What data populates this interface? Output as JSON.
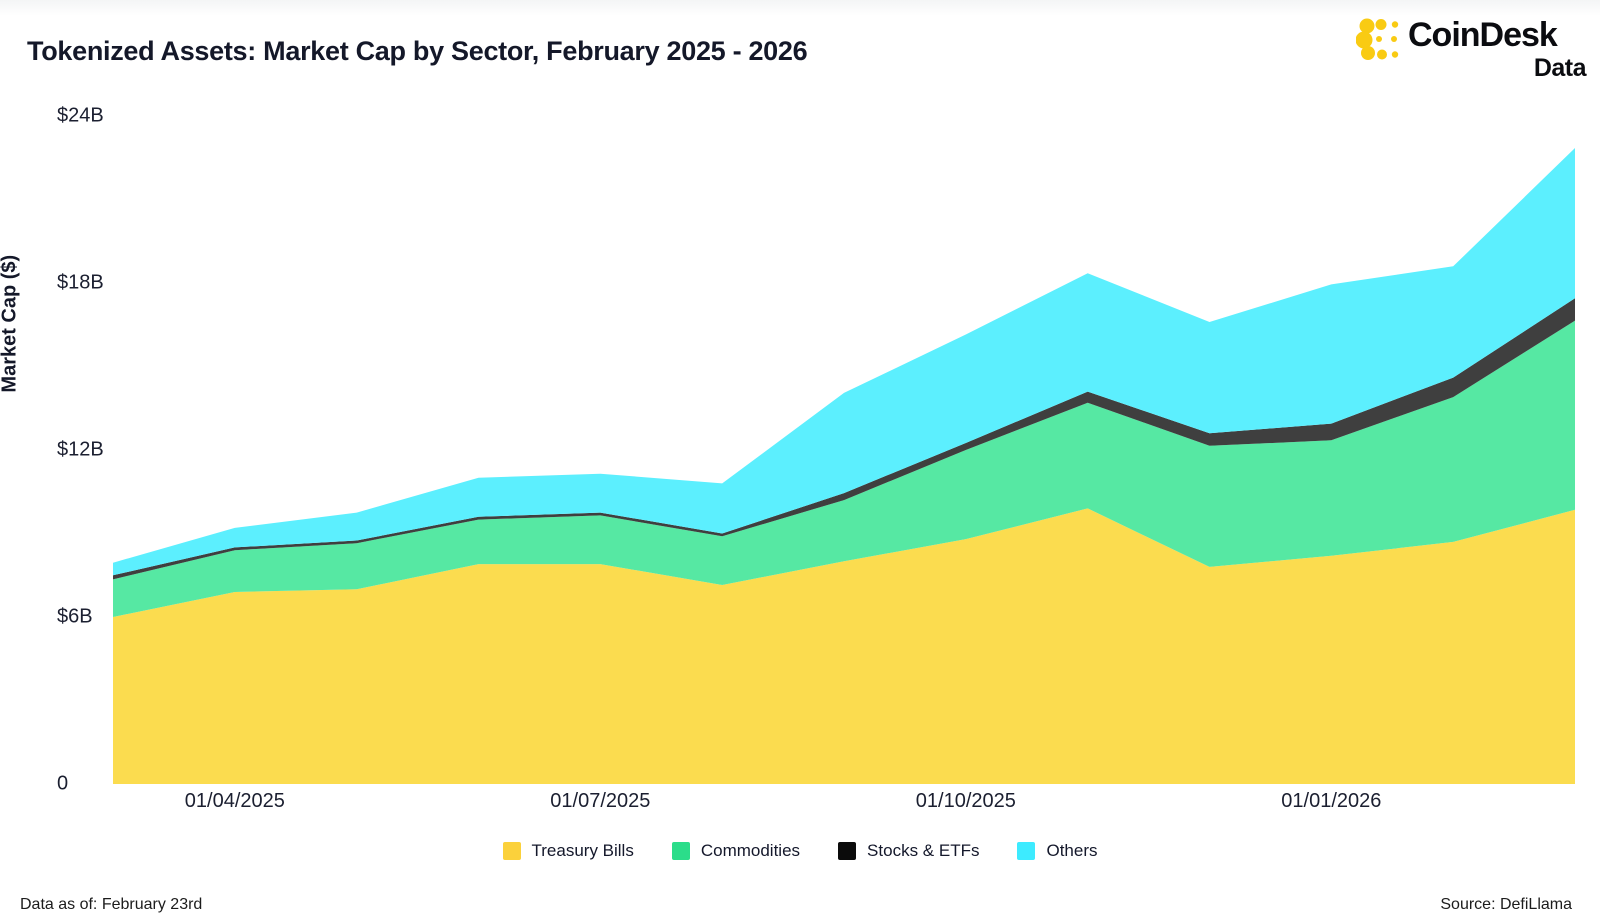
{
  "header": {
    "title": "Tokenized Assets: Market Cap by Sector, February 2025 - 2026",
    "logo": {
      "brand": "CoinDesk",
      "product": "Data",
      "mark_color": "#F9CB13"
    }
  },
  "footer": {
    "left": "Data as of: February 23rd",
    "right": "Source: DefiLlama"
  },
  "chart_data": {
    "type": "area",
    "stacked": true,
    "title": "Tokenized Assets: Market Cap by Sector, February 2025 - 2026",
    "xlabel": "",
    "ylabel": "Market Cap ($)",
    "ylim": [
      0,
      24
    ],
    "grid": false,
    "legend_position": "bottom",
    "x": [
      "01/03/2025",
      "01/04/2025",
      "01/05/2025",
      "01/06/2025",
      "01/07/2025",
      "01/08/2025",
      "01/09/2025",
      "01/10/2025",
      "01/11/2025",
      "01/12/2025",
      "01/01/2026",
      "01/02/2026",
      "01/03/2026"
    ],
    "yticks": [
      {
        "value": 0,
        "label": "0"
      },
      {
        "value": 6,
        "label": "$6B"
      },
      {
        "value": 12,
        "label": "$12B"
      },
      {
        "value": 18,
        "label": "$18B"
      },
      {
        "value": 24,
        "label": "$24B"
      }
    ],
    "xticks": [
      {
        "index": 1,
        "label": "01/04/2025"
      },
      {
        "index": 4,
        "label": "01/07/2025"
      },
      {
        "index": 7,
        "label": "01/10/2025"
      },
      {
        "index": 10,
        "label": "01/01/2026"
      }
    ],
    "series": [
      {
        "name": "Treasury Bills",
        "color": "#FBDC4F",
        "legend_color": "#FBD13B",
        "values": [
          6.0,
          6.9,
          7.0,
          7.9,
          7.9,
          7.15,
          8.0,
          8.8,
          9.9,
          7.8,
          8.2,
          8.7,
          9.85
        ]
      },
      {
        "name": "Commodities",
        "color": "#56E8A3",
        "legend_color": "#2BDD8A",
        "values": [
          1.35,
          1.5,
          1.65,
          1.6,
          1.75,
          1.75,
          2.2,
          3.2,
          3.8,
          4.35,
          4.15,
          5.2,
          6.8
        ]
      },
      {
        "name": "Stocks & ETFs",
        "color": "#3F3F3F",
        "legend_color": "#0B0B0B",
        "values": [
          0.15,
          0.1,
          0.1,
          0.1,
          0.1,
          0.1,
          0.25,
          0.25,
          0.4,
          0.45,
          0.6,
          0.7,
          0.8
        ]
      },
      {
        "name": "Others",
        "color": "#5CEFFE",
        "legend_color": "#3DEBFF",
        "values": [
          0.45,
          0.7,
          1.0,
          1.4,
          1.4,
          1.8,
          3.6,
          3.9,
          4.25,
          4.0,
          5.0,
          4.0,
          5.4
        ]
      }
    ]
  }
}
